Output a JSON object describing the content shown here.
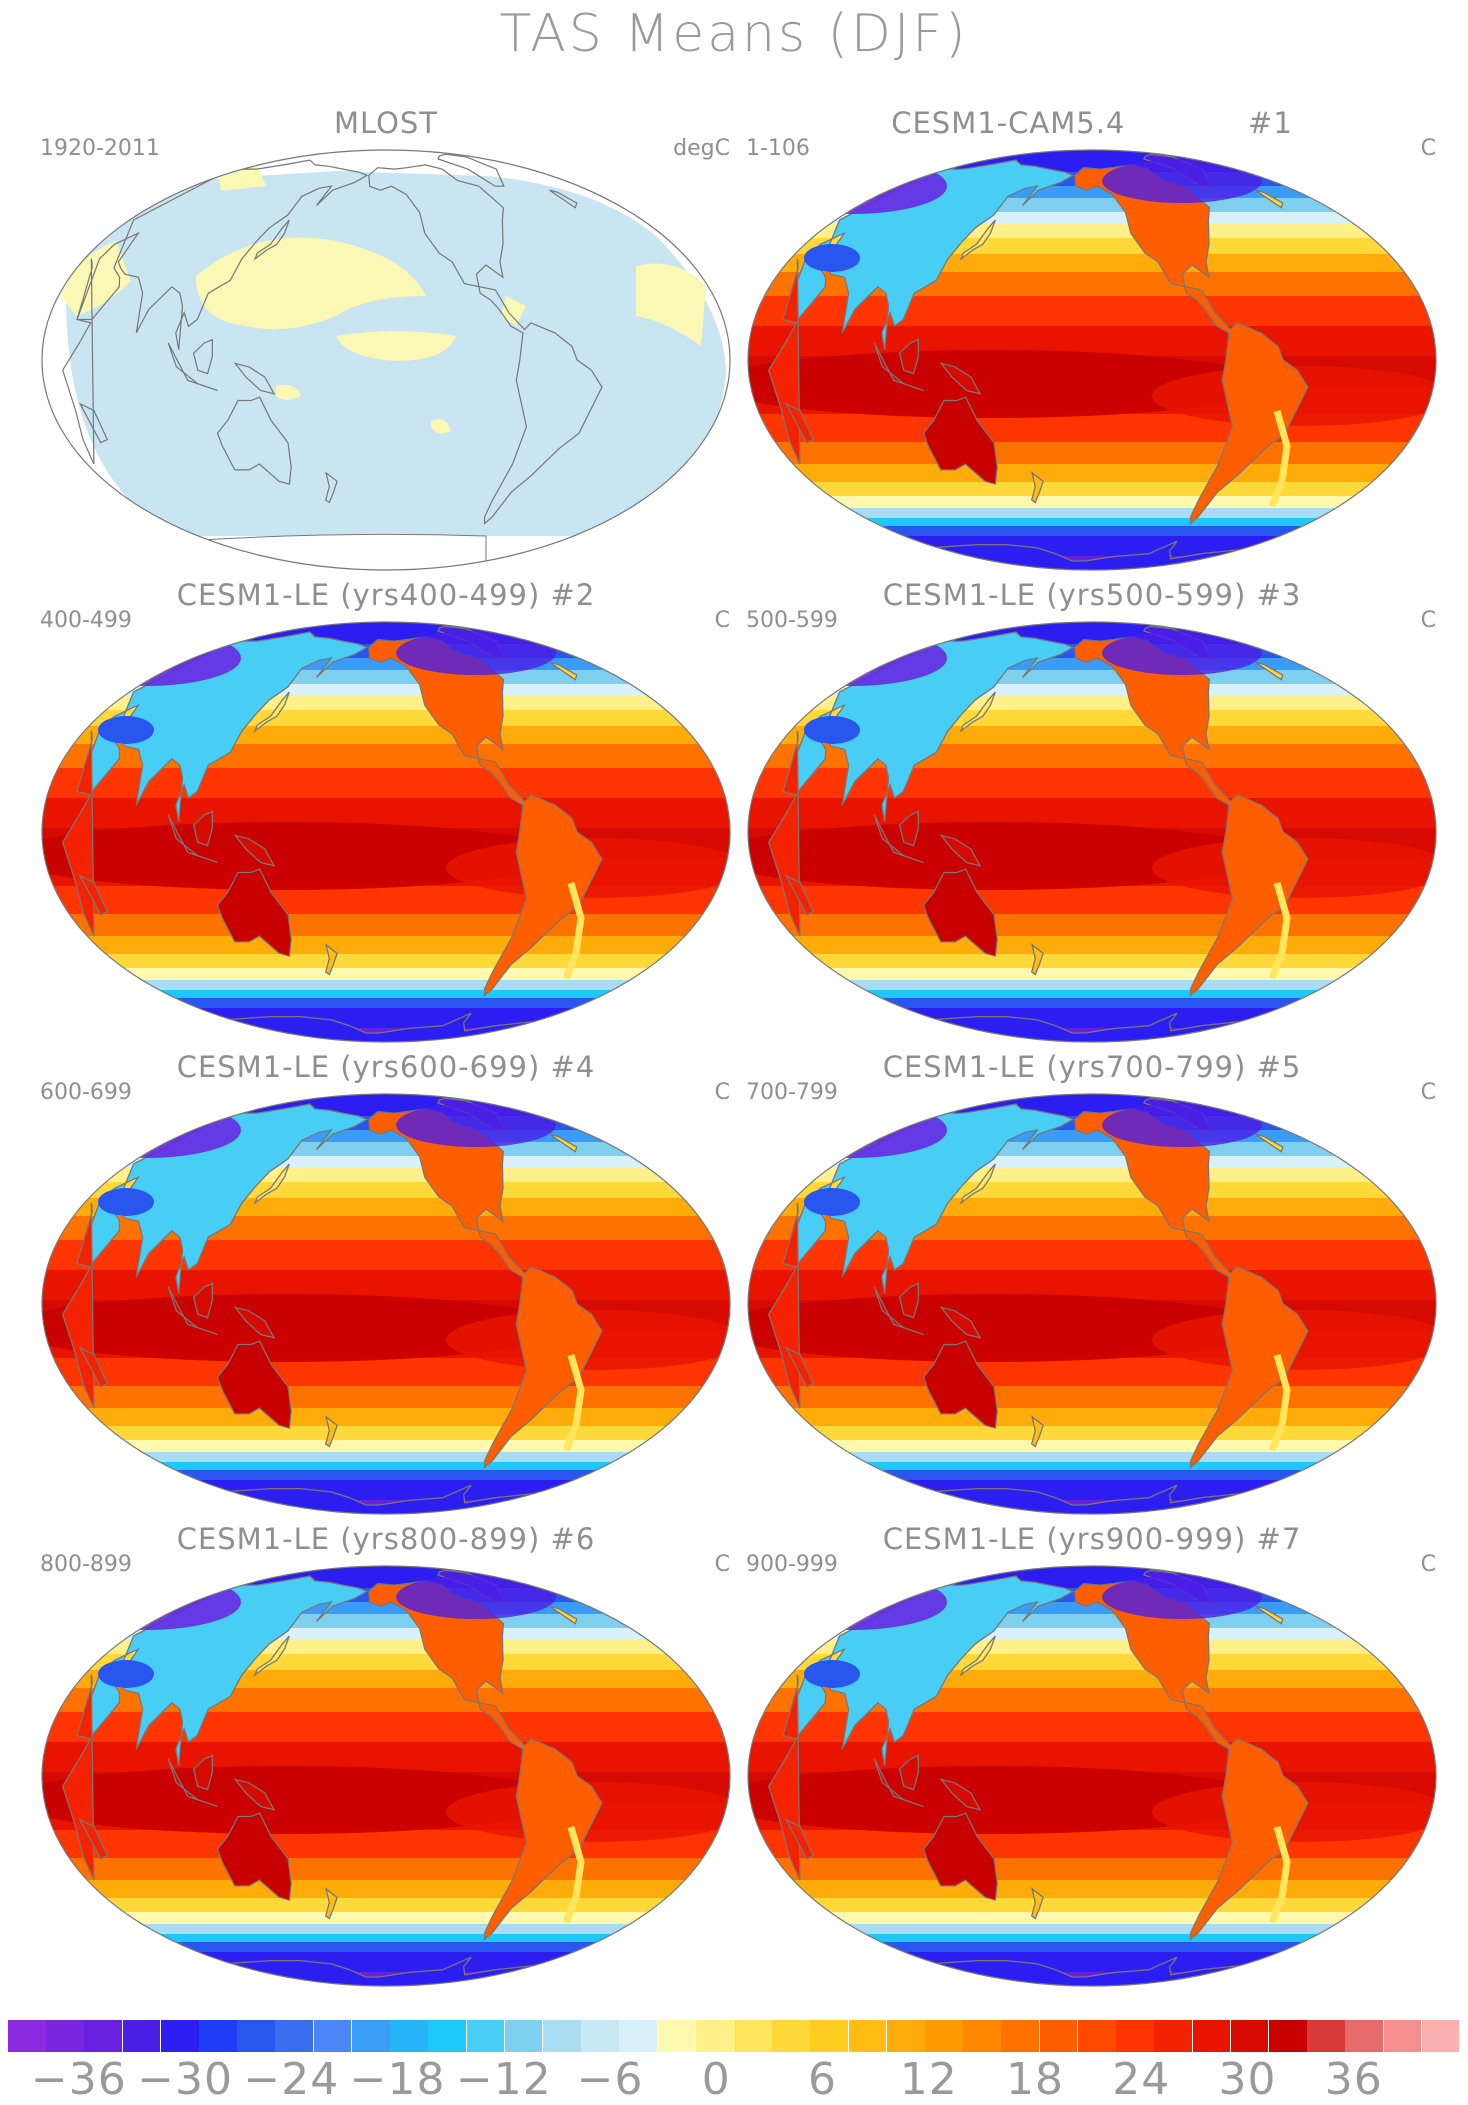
{
  "title": "TAS Means (DJF)",
  "panels": [
    {
      "title": "MLOST",
      "period": "1920-2011",
      "units": "degC",
      "kind": "obs",
      "number": ""
    },
    {
      "title": "CESM1-CAM5.4",
      "period": "1-106",
      "units": "C",
      "kind": "model",
      "number": "#1"
    },
    {
      "title": "CESM1-LE (yrs400-499)",
      "period": "400-499",
      "units": "C",
      "kind": "model",
      "number": "#2"
    },
    {
      "title": "CESM1-LE (yrs500-599)",
      "period": "500-599",
      "units": "C",
      "kind": "model",
      "number": "#3"
    },
    {
      "title": "CESM1-LE (yrs600-699)",
      "period": "600-699",
      "units": "C",
      "kind": "model",
      "number": "#4"
    },
    {
      "title": "CESM1-LE (yrs700-799)",
      "period": "700-799",
      "units": "C",
      "kind": "model",
      "number": "#5"
    },
    {
      "title": "CESM1-LE (yrs800-899)",
      "period": "800-899",
      "units": "C",
      "kind": "model",
      "number": "#6"
    },
    {
      "title": "CESM1-LE (yrs900-999)",
      "period": "900-999",
      "units": "C",
      "kind": "model",
      "number": "#7"
    }
  ],
  "colorbar": {
    "labels": [
      "-36",
      "-30",
      "-24",
      "-18",
      "-12",
      "-6",
      "0",
      "6",
      "12",
      "18",
      "24",
      "30",
      "36"
    ],
    "label_values": [
      -36,
      -30,
      -24,
      -18,
      -12,
      -6,
      0,
      6,
      12,
      18,
      24,
      30,
      36
    ],
    "min": -40,
    "max": 42,
    "step": 2,
    "colors": [
      "#8a2be2",
      "#7a25e0",
      "#6a20e0",
      "#4b1ee6",
      "#2c1ef0",
      "#1f3cf5",
      "#2a56f0",
      "#3a6ef0",
      "#4a86f5",
      "#3b9cf8",
      "#25b4f8",
      "#1ec8f8",
      "#48cdf5",
      "#7fd0ef",
      "#a9dcf2",
      "#c9e8f5",
      "#d8f0f8",
      "#fff9b0",
      "#fff08a",
      "#ffe65e",
      "#ffd93a",
      "#ffcc20",
      "#ffbd14",
      "#ffac0a",
      "#ff9a00",
      "#ff8600",
      "#ff7200",
      "#ff5e00",
      "#ff4a00",
      "#ff3500",
      "#f52200",
      "#e81400",
      "#d60a00",
      "#c80000",
      "#d83a3a",
      "#e86b6b",
      "#f38f8f",
      "#fbb0b0"
    ]
  },
  "map_colors": {
    "obs_ocean": "#c9e5f2",
    "obs_warm": "#fbf7b4",
    "coast": "#777777",
    "border": "#777777"
  }
}
